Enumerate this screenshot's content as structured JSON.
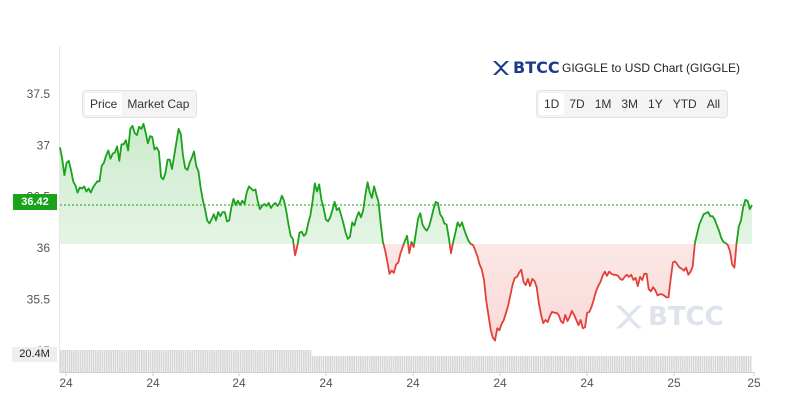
{
  "brand": {
    "name": "BTCC",
    "logo_icon": "btcc-logo-icon"
  },
  "header": {
    "title": "GIGGLE to USD Chart (GIGGLE)"
  },
  "toggle": {
    "price_label": "Price",
    "marketcap_label": "Market Cap",
    "active": "Price"
  },
  "ranges": {
    "items": [
      "1D",
      "7D",
      "1M",
      "3M",
      "1Y",
      "YTD",
      "All"
    ],
    "active": "1D"
  },
  "watermark": {
    "text": "BTCC"
  },
  "colors": {
    "up": "#1aa31a",
    "down": "#e2403a",
    "up_fill": "#1aa31a",
    "down_fill": "#e2403a",
    "volume": "#d6d6d6",
    "accent": "#1a3a8c"
  },
  "chart_data": {
    "type": "area",
    "title": "GIGGLE to USD Chart (GIGGLE)",
    "xlabel": "",
    "ylabel": "",
    "ylim": [
      34.95,
      37.85
    ],
    "yticks": [
      35,
      35.5,
      36,
      36.5,
      37,
      37.5
    ],
    "ytick_labels": [
      "35",
      "35.5",
      "36",
      "36.5",
      "37",
      "37.5"
    ],
    "xtick_labels": [
      "24",
      "24",
      "24",
      "24",
      "24",
      "24",
      "24",
      "25",
      "25"
    ],
    "baseline": 36.04,
    "current_price": 36.42,
    "current_price_label": "36.42",
    "volume_label": "20.4M",
    "grid": false,
    "series": [
      {
        "values": [
          36.98,
          36.87,
          36.71,
          36.83,
          36.85,
          36.76,
          36.65,
          36.61,
          36.54,
          36.59,
          36.58,
          36.6,
          36.55,
          36.58,
          36.54,
          36.59,
          36.62,
          36.65,
          36.65,
          36.8,
          36.83,
          36.9,
          36.95,
          36.87,
          36.92,
          36.93,
          36.99,
          36.85,
          37.01,
          37.01,
          37.05,
          36.95,
          37.16,
          37.19,
          37.12,
          37.1,
          37.18,
          37.16,
          37.21,
          37.12,
          37.02,
          37.09,
          37.08,
          36.96,
          36.98,
          36.94,
          36.69,
          36.67,
          36.73,
          36.86,
          36.86,
          36.77,
          36.9,
          37.03,
          37.16,
          37.11,
          36.9,
          36.78,
          36.76,
          36.83,
          36.88,
          36.94,
          36.8,
          36.75,
          36.59,
          36.47,
          36.38,
          36.27,
          36.24,
          36.28,
          36.33,
          36.27,
          36.35,
          36.31,
          36.35,
          36.35,
          36.26,
          36.27,
          36.4,
          36.48,
          36.42,
          36.46,
          36.42,
          36.46,
          36.43,
          36.54,
          36.6,
          36.58,
          36.56,
          36.57,
          36.46,
          36.38,
          36.41,
          36.43,
          36.41,
          36.44,
          36.39,
          36.42,
          36.44,
          36.41,
          36.44,
          36.51,
          36.46,
          36.36,
          36.23,
          36.12,
          36.09,
          35.93,
          36.02,
          36.15,
          36.16,
          36.12,
          36.14,
          36.24,
          36.32,
          36.46,
          36.63,
          36.55,
          36.62,
          36.47,
          36.39,
          36.28,
          36.26,
          36.3,
          36.37,
          36.45,
          36.37,
          36.39,
          36.32,
          36.24,
          36.15,
          36.09,
          36.11,
          36.25,
          36.22,
          36.3,
          36.35,
          36.3,
          36.37,
          36.52,
          36.64,
          36.54,
          36.49,
          36.6,
          36.52,
          36.45,
          36.24,
          36.06,
          35.98,
          35.87,
          35.75,
          35.78,
          35.76,
          35.84,
          35.86,
          35.95,
          36.01,
          36.07,
          36.12,
          35.95,
          36.06,
          36.01,
          36.15,
          36.29,
          36.34,
          36.23,
          36.19,
          36.17,
          36.21,
          36.29,
          36.38,
          36.45,
          36.44,
          36.33,
          36.3,
          36.24,
          36.23,
          36.1,
          35.95,
          36.06,
          36.15,
          36.25,
          36.21,
          36.25,
          36.18,
          36.12,
          36.07,
          36.04,
          36.03,
          35.98,
          35.92,
          35.84,
          35.79,
          35.69,
          35.49,
          35.35,
          35.21,
          35.13,
          35.1,
          35.22,
          35.2,
          35.26,
          35.3,
          35.37,
          35.44,
          35.54,
          35.64,
          35.71,
          35.72,
          35.76,
          35.79,
          35.67,
          35.64,
          35.7,
          35.63,
          35.7,
          35.68,
          35.62,
          35.46,
          35.35,
          35.27,
          35.3,
          35.28,
          35.34,
          35.38,
          35.37,
          35.37,
          35.35,
          35.29,
          35.27,
          35.35,
          35.29,
          35.33,
          35.39,
          35.35,
          35.3,
          35.25,
          35.3,
          35.22,
          35.23,
          35.37,
          35.38,
          35.43,
          35.5,
          35.58,
          35.63,
          35.67,
          35.73,
          35.77,
          35.73,
          35.77,
          35.75,
          35.74,
          35.74,
          35.73,
          35.7,
          35.69,
          35.72,
          35.74,
          35.72,
          35.74,
          35.69,
          35.71,
          35.63,
          35.72,
          35.69,
          35.75,
          35.75,
          35.6,
          35.58,
          35.62,
          35.59,
          35.54,
          35.55,
          35.55,
          35.54,
          35.52,
          35.52,
          35.7,
          35.86,
          35.87,
          35.84,
          35.81,
          35.8,
          35.78,
          35.81,
          35.74,
          35.77,
          35.82,
          36.05,
          36.14,
          36.23,
          36.28,
          36.33,
          36.34,
          36.35,
          36.31,
          36.31,
          36.28,
          36.22,
          36.17,
          36.1,
          36.06,
          36.05,
          36.03,
          35.97,
          35.84,
          35.81,
          36.05,
          36.21,
          36.27,
          36.4,
          36.47,
          36.46,
          36.38,
          36.42
        ]
      }
    ]
  }
}
